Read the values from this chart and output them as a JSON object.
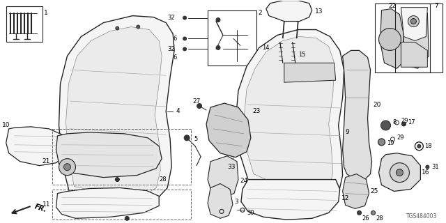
{
  "bg_color": "#ffffff",
  "line_color": "#222222",
  "gray_fill": "#e8e8e8",
  "light_fill": "#f5f5f5",
  "watermark": "TGS484003",
  "fig_width": 6.4,
  "fig_height": 3.2,
  "dpi": 100
}
